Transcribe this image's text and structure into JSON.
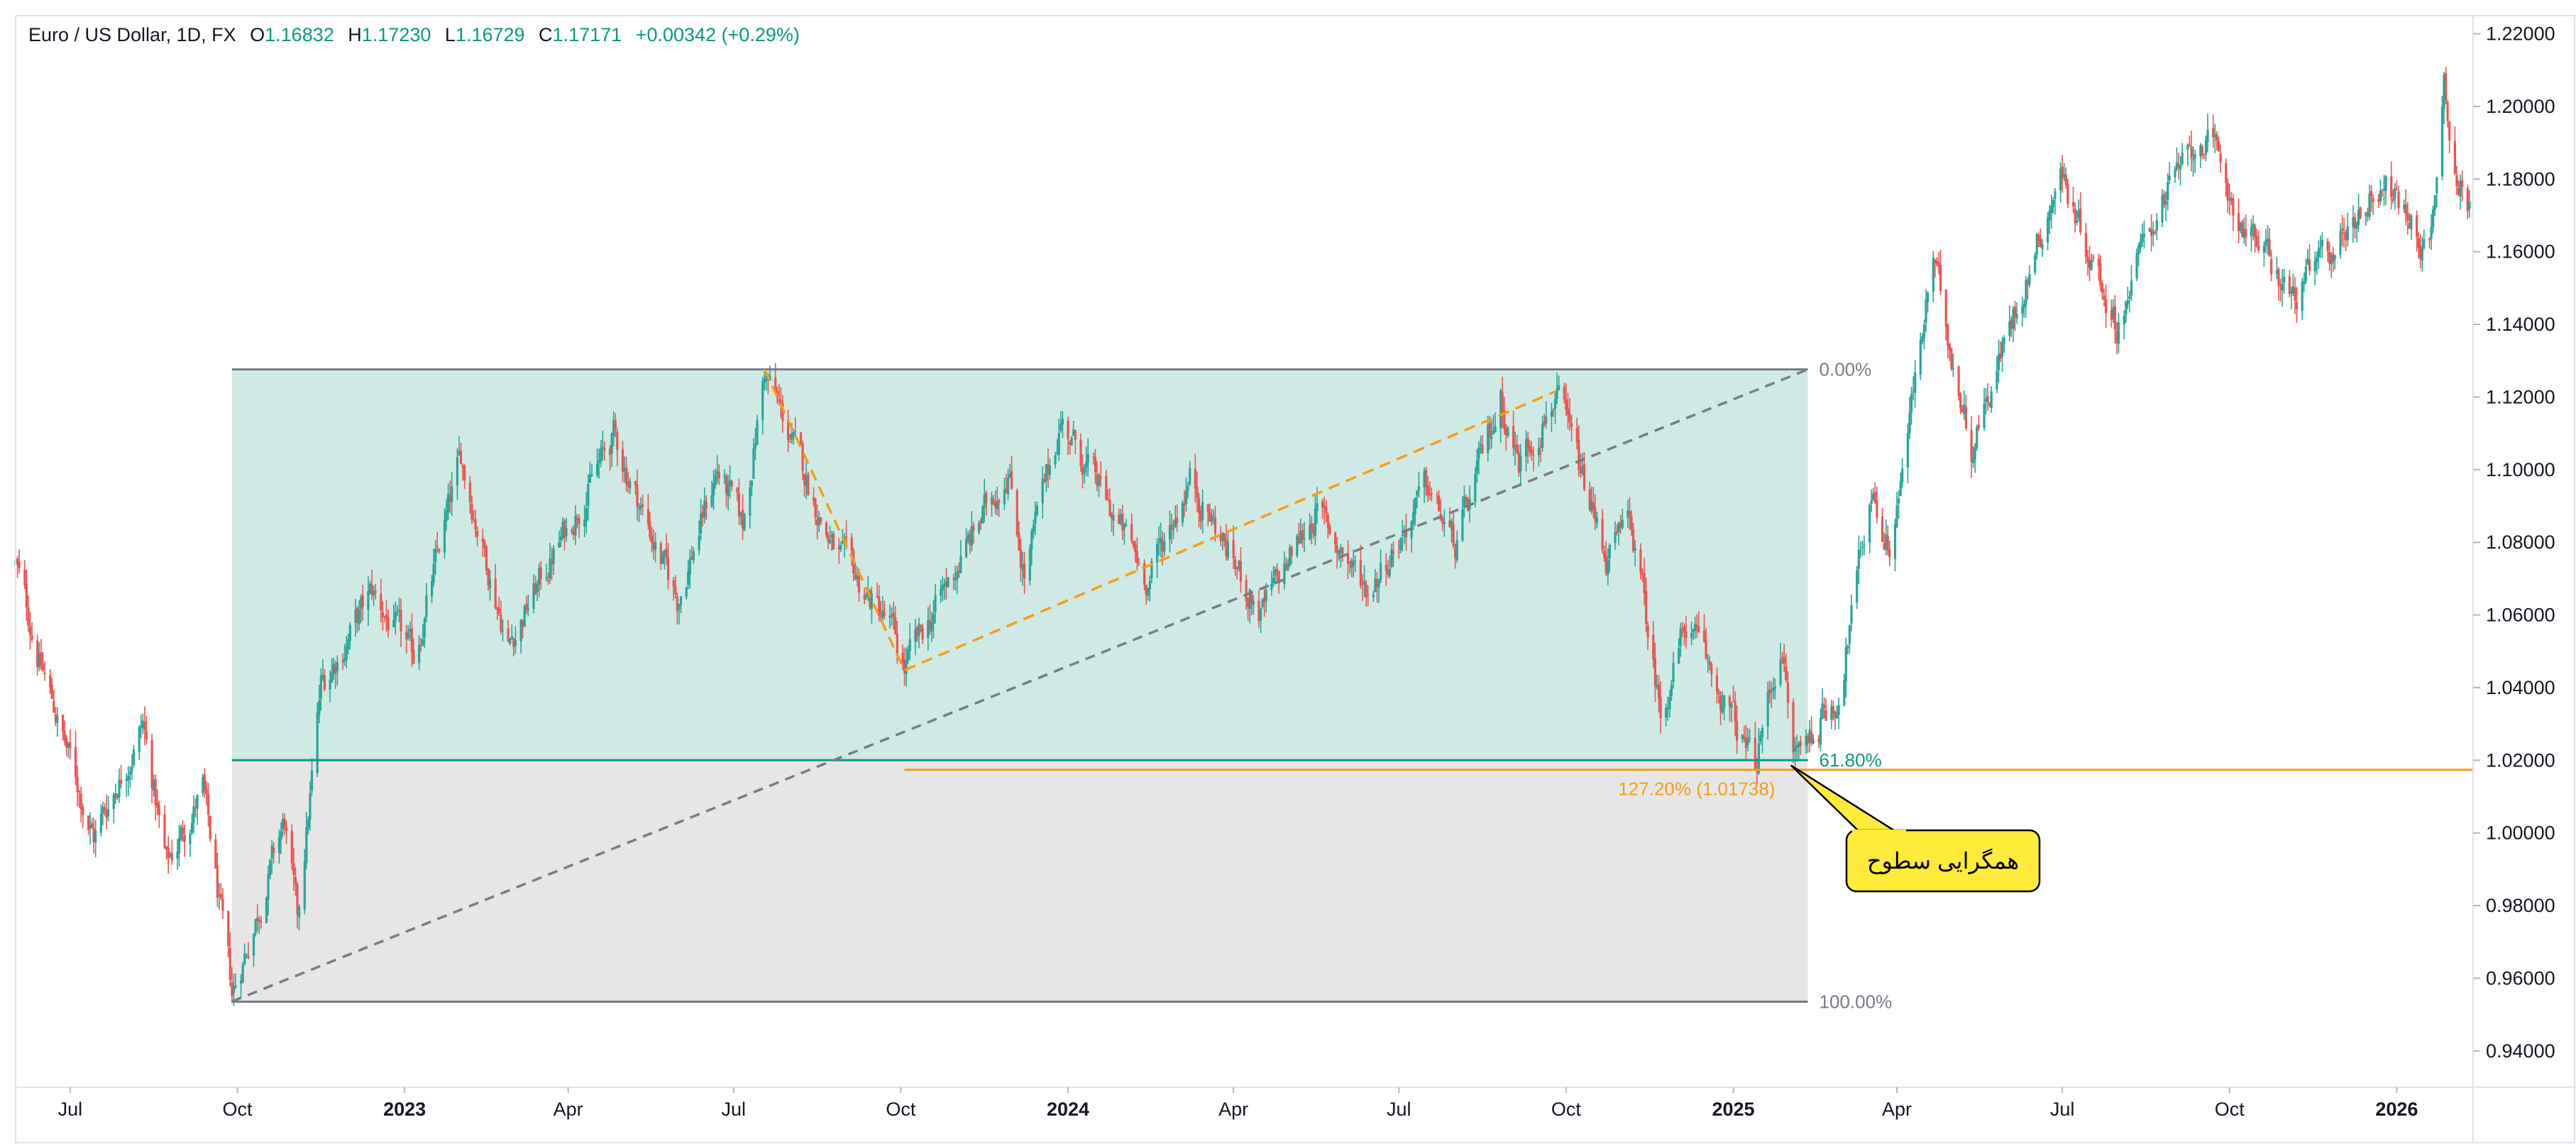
{
  "header": {
    "symbol": "Euro / US Dollar, 1D, FX",
    "open_label": "O",
    "open_value": "1.16832",
    "high_label": "H",
    "high_value": "1.17230",
    "low_label": "L",
    "low_value": "1.16729",
    "close_label": "C",
    "close_value": "1.17171",
    "change": "+0.00342 (+0.29%)"
  },
  "colors": {
    "up": "#26a69a",
    "down": "#ef5350",
    "upper_zone": "#cfeae4",
    "lower_zone": "#e6e6e6",
    "level_61": "#089981",
    "fib_ext": "#f59d14",
    "callout_bg": "#ffeb3b",
    "trendline": "#787b86",
    "axis_text": "#131722"
  },
  "chart_data": {
    "type": "candlestick",
    "title": "Euro / US Dollar, 1D, FX",
    "y_axis": {
      "side": "right",
      "range": [
        0.93,
        1.225
      ],
      "ticks": [
        "1.22000",
        "1.20000",
        "1.18000",
        "1.16000",
        "1.14000",
        "1.12000",
        "1.10000",
        "1.08000",
        "1.06000",
        "1.04000",
        "1.02000",
        "1.00000",
        "0.98000",
        "0.96000",
        "0.94000"
      ]
    },
    "x_axis": {
      "range": [
        "2022-06-01",
        "2026-02-12"
      ],
      "ticks": [
        {
          "label": "Jul",
          "date": "2022-07-01",
          "bold": false
        },
        {
          "label": "Oct",
          "date": "2022-10-01",
          "bold": false
        },
        {
          "label": "2023",
          "date": "2023-01-01",
          "bold": true
        },
        {
          "label": "Apr",
          "date": "2023-04-01",
          "bold": false
        },
        {
          "label": "Jul",
          "date": "2023-07-01",
          "bold": false
        },
        {
          "label": "Oct",
          "date": "2023-10-01",
          "bold": false
        },
        {
          "label": "2024",
          "date": "2024-01-01",
          "bold": true
        },
        {
          "label": "Apr",
          "date": "2024-04-01",
          "bold": false
        },
        {
          "label": "Jul",
          "date": "2024-07-01",
          "bold": false
        },
        {
          "label": "Oct",
          "date": "2024-10-01",
          "bold": false
        },
        {
          "label": "2025",
          "date": "2025-01-01",
          "bold": true
        },
        {
          "label": "Apr",
          "date": "2025-04-01",
          "bold": false
        },
        {
          "label": "Jul",
          "date": "2025-07-01",
          "bold": false
        },
        {
          "label": "Oct",
          "date": "2025-10-01",
          "bold": false
        },
        {
          "label": "2026",
          "date": "2026-01-01",
          "bold": true
        }
      ]
    },
    "price_path": [
      [
        "2022-06-01",
        1.074
      ],
      [
        "2022-06-15",
        1.046
      ],
      [
        "2022-07-14",
        0.999
      ],
      [
        "2022-08-10",
        1.03
      ],
      [
        "2022-08-23",
        0.991
      ],
      [
        "2022-09-12",
        1.012
      ],
      [
        "2022-09-28",
        0.955
      ],
      [
        "2022-10-27",
        1.003
      ],
      [
        "2022-11-03",
        0.975
      ],
      [
        "2022-11-16",
        1.04
      ],
      [
        "2022-12-14",
        1.066
      ],
      [
        "2023-01-06",
        1.048
      ],
      [
        "2023-02-01",
        1.103
      ],
      [
        "2023-02-27",
        1.052
      ],
      [
        "2023-04-26",
        1.109
      ],
      [
        "2023-05-31",
        1.064
      ],
      [
        "2023-06-22",
        1.1
      ],
      [
        "2023-07-06",
        1.084
      ],
      [
        "2023-07-18",
        1.127
      ],
      [
        "2023-08-25",
        1.078
      ],
      [
        "2023-09-25",
        1.057
      ],
      [
        "2023-10-03",
        1.045
      ],
      [
        "2023-11-29",
        1.101
      ],
      [
        "2023-12-08",
        1.071
      ],
      [
        "2023-12-28",
        1.114
      ],
      [
        "2024-02-14",
        1.07
      ],
      [
        "2024-03-08",
        1.098
      ],
      [
        "2024-04-16",
        1.06
      ],
      [
        "2024-05-16",
        1.089
      ],
      [
        "2024-06-14",
        1.067
      ],
      [
        "2024-07-17",
        1.095
      ],
      [
        "2024-08-01",
        1.078
      ],
      [
        "2024-08-26",
        1.12
      ],
      [
        "2024-09-05",
        1.102
      ],
      [
        "2024-09-25",
        1.121
      ],
      [
        "2024-10-23",
        1.076
      ],
      [
        "2024-11-06",
        1.085
      ],
      [
        "2024-11-22",
        1.033
      ],
      [
        "2024-12-06",
        1.058
      ],
      [
        "2025-01-13",
        1.018
      ],
      [
        "2025-01-27",
        1.053
      ],
      [
        "2025-02-03",
        1.021
      ],
      [
        "2025-02-28",
        1.038
      ],
      [
        "2025-03-18",
        1.095
      ],
      [
        "2025-03-28",
        1.078
      ],
      [
        "2025-04-21",
        1.157
      ],
      [
        "2025-05-12",
        1.107
      ],
      [
        "2025-06-30",
        1.182
      ],
      [
        "2025-07-31",
        1.14
      ],
      [
        "2025-08-22",
        1.172
      ],
      [
        "2025-09-17",
        1.192
      ],
      [
        "2025-10-06",
        1.17
      ],
      [
        "2025-11-05",
        1.147
      ],
      [
        "2025-11-28",
        1.162
      ],
      [
        "2025-12-24",
        1.18
      ],
      [
        "2026-01-19",
        1.16
      ],
      [
        "2026-01-27",
        1.208
      ],
      [
        "2026-02-04",
        1.178
      ],
      [
        "2026-02-10",
        1.1717
      ]
    ],
    "fib_retracement": {
      "start_date": "2022-09-28",
      "end_date": "2025-02-11",
      "high": 1.12762,
      "low": 0.95355,
      "levels": [
        {
          "label": "0.00%",
          "price": 1.12762
        },
        {
          "label": "61.80%",
          "price": 1.02005
        },
        {
          "label": "100.00%",
          "price": 0.95355
        }
      ]
    },
    "fib_extension": {
      "points": [
        [
          "2023-07-18",
          1.1276
        ],
        [
          "2023-10-03",
          1.0448
        ],
        [
          "2024-09-25",
          1.1215
        ]
      ],
      "level": {
        "label": "127.20% (1.01738)",
        "price": 1.01738
      },
      "line_start": "2023-10-03"
    },
    "trend_line": [
      [
        "2022-09-28",
        0.9536
      ],
      [
        "2025-02-11",
        1.1276
      ]
    ],
    "callout": {
      "text": "همگرایی سطوح",
      "anchor_date": "2025-02-02",
      "anchor_price": 1.0185
    }
  }
}
